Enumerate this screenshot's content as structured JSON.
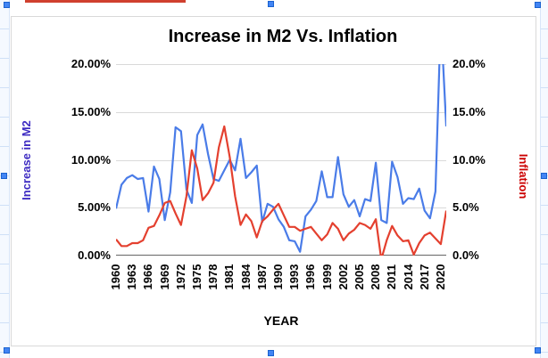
{
  "chart_data": {
    "type": "line",
    "title": "Increase in M2 Vs. Inflation",
    "xlabel": "YEAR",
    "ylabel_left": "Increase in M2",
    "ylabel_right": "Inflation",
    "ylim": [
      0,
      20
    ],
    "grid": true,
    "legend_position": "none",
    "x": [
      1960,
      1961,
      1962,
      1963,
      1964,
      1965,
      1966,
      1967,
      1968,
      1969,
      1970,
      1971,
      1972,
      1973,
      1974,
      1975,
      1976,
      1977,
      1978,
      1979,
      1980,
      1981,
      1982,
      1983,
      1984,
      1985,
      1986,
      1987,
      1988,
      1989,
      1990,
      1991,
      1992,
      1993,
      1994,
      1995,
      1996,
      1997,
      1998,
      1999,
      2000,
      2001,
      2002,
      2003,
      2004,
      2005,
      2006,
      2007,
      2008,
      2009,
      2010,
      2011,
      2012,
      2013,
      2014,
      2015,
      2016,
      2017,
      2018,
      2019,
      2020,
      2021
    ],
    "x_tick_labels": [
      "1960",
      "1963",
      "1966",
      "1969",
      "1972",
      "1975",
      "1978",
      "1981",
      "1984",
      "1987",
      "1990",
      "1993",
      "1996",
      "1999",
      "2002",
      "2005",
      "2008",
      "2011",
      "2014",
      "2017",
      "2020"
    ],
    "left_axis_tick_labels": [
      "0.00%",
      "5.00%",
      "10.00%",
      "15.00%",
      "20.00%"
    ],
    "right_axis_tick_labels": [
      "0.0%",
      "5.0%",
      "10.0%",
      "15.0%",
      "20.0%"
    ],
    "series": [
      {
        "name": "Increase in M2",
        "axis": "left",
        "color": "#4a7ce8",
        "values": [
          4.9,
          7.4,
          8.1,
          8.4,
          8.0,
          8.1,
          4.6,
          9.3,
          8.0,
          3.7,
          6.6,
          13.4,
          13.0,
          6.9,
          5.5,
          12.6,
          13.7,
          10.6,
          8.0,
          7.8,
          8.9,
          10.0,
          8.9,
          12.2,
          8.1,
          8.7,
          9.4,
          3.5,
          5.4,
          5.1,
          3.8,
          3.0,
          1.6,
          1.5,
          0.4,
          4.1,
          4.8,
          5.7,
          8.8,
          6.1,
          6.1,
          10.3,
          6.4,
          5.1,
          5.8,
          4.1,
          5.9,
          5.7,
          9.7,
          3.7,
          3.4,
          9.8,
          8.2,
          5.4,
          6.0,
          5.9,
          7.0,
          4.7,
          3.9,
          6.7,
          24.8,
          13.5
        ]
      },
      {
        "name": "Inflation",
        "axis": "right",
        "color": "#e4402f",
        "values": [
          1.7,
          1.0,
          1.0,
          1.3,
          1.3,
          1.6,
          2.9,
          3.1,
          4.2,
          5.5,
          5.7,
          4.4,
          3.2,
          6.2,
          11.0,
          9.1,
          5.8,
          6.5,
          7.6,
          11.3,
          13.5,
          10.3,
          6.2,
          3.2,
          4.3,
          3.6,
          1.9,
          3.6,
          4.1,
          4.8,
          5.4,
          4.2,
          3.0,
          3.0,
          2.6,
          2.8,
          3.0,
          2.3,
          1.6,
          2.2,
          3.4,
          2.8,
          1.6,
          2.3,
          2.7,
          3.4,
          3.2,
          2.8,
          3.8,
          -0.4,
          1.6,
          3.1,
          2.1,
          1.5,
          1.6,
          0.1,
          1.3,
          2.1,
          2.4,
          1.8,
          1.2,
          4.7
        ]
      }
    ],
    "colors": {
      "left_axis_title": "#3d2bc2",
      "right_axis_title": "#cc0000",
      "grid": "#d9d9d9",
      "axis_line": "#666666",
      "selection_handle": "#4285f4"
    }
  }
}
